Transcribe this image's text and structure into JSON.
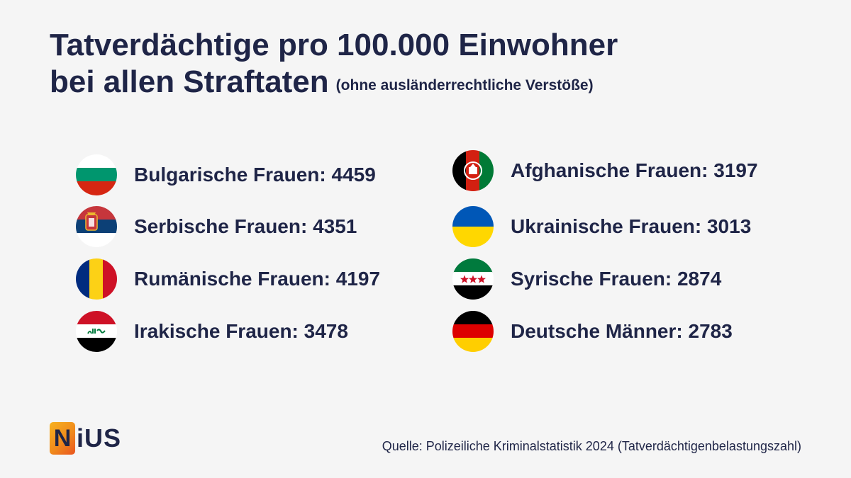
{
  "title_line1": "Tatverdächtige pro 100.000 Einwohner",
  "title_line2": "bei allen Straftaten",
  "subtitle": "(ohne ausländerrechtliche Verstöße)",
  "source": "Quelle: Polizeiliche Kriminalstatistik 2024 (Tatverdächtigenbelastungszahl)",
  "logo": {
    "box_letter": "N",
    "rest": "iUS"
  },
  "colors": {
    "text": "#1f2547",
    "background": "#f5f5f5",
    "logo_orange": "#f08a1c"
  },
  "chart_data": {
    "type": "table",
    "title": "Tatverdächtige pro 100.000 Einwohner bei allen Straftaten",
    "subtitle": "(ohne ausländerrechtliche Verstöße)",
    "categories": [
      "Bulgarische Frauen",
      "Serbische Frauen",
      "Rumänische Frauen",
      "Irakische Frauen",
      "Afghanische Frauen",
      "Ukrainische Frauen",
      "Syrische Frauen",
      "Deutsche Männer"
    ],
    "values": [
      4459,
      4351,
      4197,
      3478,
      3197,
      3013,
      2874,
      2783
    ],
    "labels": [
      "Bulgarische Frauen: 4459",
      "Serbische Frauen: 4351",
      "Rumänische Frauen: 4197",
      "Irakische Frauen: 3478",
      "Afghanische Frauen: 3197",
      "Ukrainische Frauen: 3013",
      "Syrische Frauen: 2874",
      "Deutsche Männer: 2783"
    ],
    "flags": [
      "bulgaria-flag-icon",
      "serbia-flag-icon",
      "romania-flag-icon",
      "iraq-flag-icon",
      "afghanistan-flag-icon",
      "ukraine-flag-icon",
      "syria-flag-icon",
      "germany-flag-icon"
    ]
  }
}
